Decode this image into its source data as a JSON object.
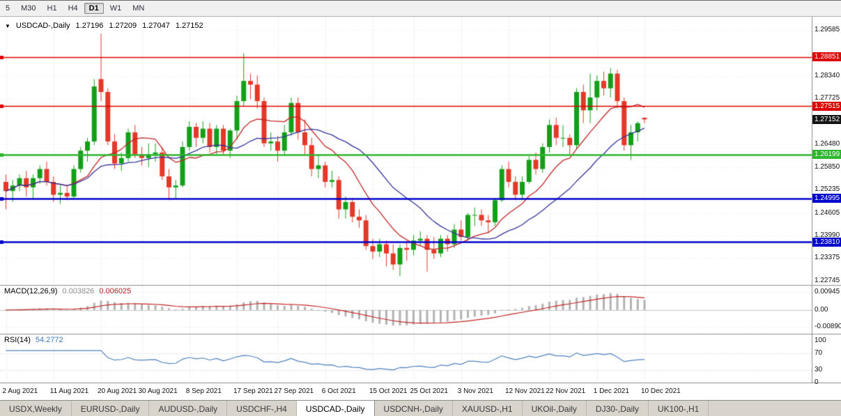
{
  "toolbar": {
    "timeframes": [
      "5",
      "M30",
      "H1",
      "H4",
      "D1",
      "W1",
      "MN"
    ],
    "active_timeframe": "D1"
  },
  "chart": {
    "collapse_icon": "▼",
    "title": {
      "symbol": "USDCAD-,Daily",
      "open": "1.27196",
      "high": "1.27209",
      "low": "1.27047",
      "close": "1.27152"
    },
    "price_axis_labels": [
      "1.29585",
      "1.28340",
      "1.27725",
      "1.26480",
      "1.25850",
      "1.25235",
      "1.24605",
      "1.23990",
      "1.23375",
      "1.22745"
    ],
    "badges": [
      {
        "value": "1.28851",
        "color": "#dd0000"
      },
      {
        "value": "1.27515",
        "color": "#dd0000"
      },
      {
        "value": "1.27152",
        "color": "#151515"
      },
      {
        "value": "1.26199",
        "color": "#2db52d"
      },
      {
        "value": "1.24995",
        "color": "#0000cc"
      },
      {
        "value": "1.23810",
        "color": "#0000cc"
      }
    ],
    "hlines": [
      {
        "price": 1.28851,
        "color": "#dd0000",
        "width": 1.4
      },
      {
        "price": 1.27515,
        "color": "#dd0000",
        "width": 1.4
      },
      {
        "price": 1.26199,
        "color": "#2db52d",
        "width": 2.4
      },
      {
        "price": 1.24995,
        "color": "#0000cc",
        "width": 2.4
      },
      {
        "price": 1.2381,
        "color": "#0000cc",
        "width": 2.4
      }
    ]
  },
  "chart_data": {
    "type": "candlestick",
    "title": "USDCAD-,Daily",
    "ohlc_display": [
      1.27196,
      1.27209,
      1.27047,
      1.27152
    ],
    "ylim": [
      1.2264,
      1.2995
    ],
    "x_labels": [
      "2 Aug 2021",
      "11 Aug 2021",
      "20 Aug 2021",
      "30 Aug 2021",
      "8 Sep 2021",
      "17 Sep 2021",
      "27 Sep 2021",
      "6 Oct 2021",
      "15 Oct 2021",
      "25 Oct 2021",
      "3 Nov 2021",
      "12 Nov 2021",
      "22 Nov 2021",
      "1 Dec 2021",
      "10 Dec 2021"
    ],
    "x_label_indices": [
      0,
      7,
      14,
      20,
      27,
      34,
      40,
      47,
      54,
      60,
      67,
      74,
      80,
      87,
      94
    ],
    "candles": [
      [
        1.2545,
        1.2565,
        1.247,
        1.252
      ],
      [
        1.252,
        1.255,
        1.249,
        1.2535
      ],
      [
        1.2535,
        1.2565,
        1.252,
        1.2555
      ],
      [
        1.2555,
        1.2575,
        1.2505,
        1.253
      ],
      [
        1.253,
        1.2565,
        1.25,
        1.2555
      ],
      [
        1.2555,
        1.259,
        1.254,
        1.258
      ],
      [
        1.258,
        1.26,
        1.2535,
        1.2545
      ],
      [
        1.2545,
        1.256,
        1.249,
        1.251
      ],
      [
        1.251,
        1.2535,
        1.2485,
        1.2515
      ],
      [
        1.2515,
        1.2535,
        1.2495,
        1.2505
      ],
      [
        1.2505,
        1.259,
        1.25,
        1.258
      ],
      [
        1.258,
        1.264,
        1.257,
        1.263
      ],
      [
        1.263,
        1.2665,
        1.26,
        1.2655
      ],
      [
        1.2655,
        1.2825,
        1.2645,
        1.2805
      ],
      [
        1.2825,
        1.2949,
        1.2765,
        1.279
      ],
      [
        1.279,
        1.28,
        1.2645,
        1.2655
      ],
      [
        1.2655,
        1.2675,
        1.258,
        1.2595
      ],
      [
        1.2595,
        1.2625,
        1.2575,
        1.261
      ],
      [
        1.261,
        1.269,
        1.26,
        1.268
      ],
      [
        1.268,
        1.27,
        1.261,
        1.262
      ],
      [
        1.262,
        1.264,
        1.259,
        1.261
      ],
      [
        1.261,
        1.265,
        1.2585,
        1.262
      ],
      [
        1.262,
        1.265,
        1.26,
        1.2625
      ],
      [
        1.2625,
        1.264,
        1.255,
        1.256
      ],
      [
        1.256,
        1.258,
        1.2495,
        1.253
      ],
      [
        1.253,
        1.255,
        1.25,
        1.2535
      ],
      [
        1.2535,
        1.2655,
        1.253,
        1.264
      ],
      [
        1.264,
        1.271,
        1.263,
        1.2695
      ],
      [
        1.2695,
        1.2705,
        1.264,
        1.2665
      ],
      [
        1.2665,
        1.271,
        1.265,
        1.269
      ],
      [
        1.269,
        1.2705,
        1.2625,
        1.264
      ],
      [
        1.264,
        1.27,
        1.262,
        1.269
      ],
      [
        1.269,
        1.27,
        1.262,
        1.263
      ],
      [
        1.263,
        1.269,
        1.261,
        1.2685
      ],
      [
        1.2685,
        1.278,
        1.266,
        1.2765
      ],
      [
        1.2765,
        1.2895,
        1.275,
        1.282
      ],
      [
        1.282,
        1.284,
        1.277,
        1.281
      ],
      [
        1.281,
        1.2835,
        1.2745,
        1.2765
      ],
      [
        1.2765,
        1.2775,
        1.264,
        1.265
      ],
      [
        1.265,
        1.268,
        1.263,
        1.2655
      ],
      [
        1.2655,
        1.267,
        1.26,
        1.263
      ],
      [
        1.263,
        1.27,
        1.2615,
        1.268
      ],
      [
        1.268,
        1.2775,
        1.267,
        1.276
      ],
      [
        1.276,
        1.2775,
        1.266,
        1.268
      ],
      [
        1.268,
        1.2715,
        1.262,
        1.2645
      ],
      [
        1.2645,
        1.2665,
        1.256,
        1.258
      ],
      [
        1.258,
        1.262,
        1.2555,
        1.259
      ],
      [
        1.259,
        1.26,
        1.253,
        1.2545
      ],
      [
        1.2545,
        1.2575,
        1.253,
        1.255
      ],
      [
        1.255,
        1.256,
        1.2445,
        1.247
      ],
      [
        1.247,
        1.2505,
        1.2445,
        1.249
      ],
      [
        1.249,
        1.25,
        1.2435,
        1.245
      ],
      [
        1.245,
        1.247,
        1.242,
        1.244
      ],
      [
        1.244,
        1.2455,
        1.236,
        1.237
      ],
      [
        1.237,
        1.239,
        1.2335,
        1.2355
      ],
      [
        1.2355,
        1.239,
        1.234,
        1.2375
      ],
      [
        1.2375,
        1.2385,
        1.2315,
        1.235
      ],
      [
        1.235,
        1.2375,
        1.2305,
        1.232
      ],
      [
        1.232,
        1.2375,
        1.2288,
        1.2365
      ],
      [
        1.2365,
        1.2385,
        1.233,
        1.236
      ],
      [
        1.236,
        1.24,
        1.2345,
        1.2385
      ],
      [
        1.2385,
        1.241,
        1.237,
        1.239
      ],
      [
        1.239,
        1.24,
        1.23,
        1.236
      ],
      [
        1.236,
        1.2395,
        1.2335,
        1.235
      ],
      [
        1.235,
        1.24,
        1.234,
        1.239
      ],
      [
        1.239,
        1.24,
        1.2355,
        1.2375
      ],
      [
        1.2375,
        1.243,
        1.2365,
        1.2415
      ],
      [
        1.2415,
        1.244,
        1.2385,
        1.2395
      ],
      [
        1.2395,
        1.246,
        1.2385,
        1.2455
      ],
      [
        1.2455,
        1.2475,
        1.2425,
        1.2455
      ],
      [
        1.2455,
        1.247,
        1.2425,
        1.244
      ],
      [
        1.244,
        1.2455,
        1.2405,
        1.2435
      ],
      [
        1.2435,
        1.25,
        1.2425,
        1.2495
      ],
      [
        1.2495,
        1.259,
        1.249,
        1.258
      ],
      [
        1.258,
        1.26,
        1.253,
        1.2545
      ],
      [
        1.2545,
        1.256,
        1.2495,
        1.251
      ],
      [
        1.251,
        1.256,
        1.2495,
        1.2545
      ],
      [
        1.2545,
        1.2615,
        1.254,
        1.2605
      ],
      [
        1.2605,
        1.2625,
        1.2565,
        1.258
      ],
      [
        1.258,
        1.265,
        1.257,
        1.264
      ],
      [
        1.264,
        1.2715,
        1.2625,
        1.27
      ],
      [
        1.27,
        1.272,
        1.2645,
        1.2665
      ],
      [
        1.2665,
        1.27,
        1.264,
        1.2665
      ],
      [
        1.2665,
        1.2675,
        1.262,
        1.2645
      ],
      [
        1.2645,
        1.28,
        1.2635,
        1.279
      ],
      [
        1.279,
        1.281,
        1.2705,
        1.274
      ],
      [
        1.274,
        1.284,
        1.2705,
        1.2775
      ],
      [
        1.2775,
        1.2835,
        1.274,
        1.282
      ],
      [
        1.282,
        1.2845,
        1.278,
        1.28
      ],
      [
        1.28,
        1.2855,
        1.2775,
        1.284
      ],
      [
        1.284,
        1.285,
        1.2745,
        1.2765
      ],
      [
        1.2765,
        1.2775,
        1.263,
        1.2645
      ],
      [
        1.2645,
        1.27,
        1.2605,
        1.268
      ],
      [
        1.268,
        1.271,
        1.2655,
        1.2705
      ],
      [
        1.27196,
        1.27209,
        1.27047,
        1.27152
      ]
    ],
    "overlays": [
      {
        "name": "fast-ma",
        "type": "sma",
        "period": 10,
        "color": "#c22222"
      },
      {
        "name": "slow-ma",
        "type": "sma",
        "period": 20,
        "color": "#32329a"
      }
    ],
    "macd": {
      "label": "MACD(12,26,9)",
      "macd_value": "0.003826",
      "signal_value": "0.006025",
      "fast": 12,
      "slow": 26,
      "signal": 9,
      "axis_labels": [
        "0.00945",
        "0.00",
        "-0.00890"
      ],
      "axis_values": [
        0.00945,
        0,
        -0.0089
      ],
      "histogram_color": "#b2b2b2",
      "signal_color": "#c22222"
    },
    "rsi": {
      "label": "RSI(14)",
      "value": "54.2772",
      "period": 14,
      "axis_labels": [
        "100",
        "70",
        "30",
        "0"
      ],
      "axis_values": [
        100,
        70,
        30,
        0
      ],
      "levels": [
        70,
        30
      ],
      "line_color": "#4f81bd"
    }
  },
  "tabs": [
    "USDX,Weekly",
    "EURUSD-,Daily",
    "AUDUSD-,Daily",
    "USDCHF-,H4",
    "USDCAD-,Daily",
    "USDCNH-,Daily",
    "XAUUSD-,H1",
    "UKOil-,Daily",
    "DJ30-,Daily",
    "UK100-,H1"
  ],
  "active_tab": "USDCAD-,Daily",
  "colors": {
    "bull": "#13a019",
    "bear": "#e43828",
    "grid": "#e4e4e4",
    "separator": "#8c8c8c",
    "axis_text": "#101010"
  }
}
